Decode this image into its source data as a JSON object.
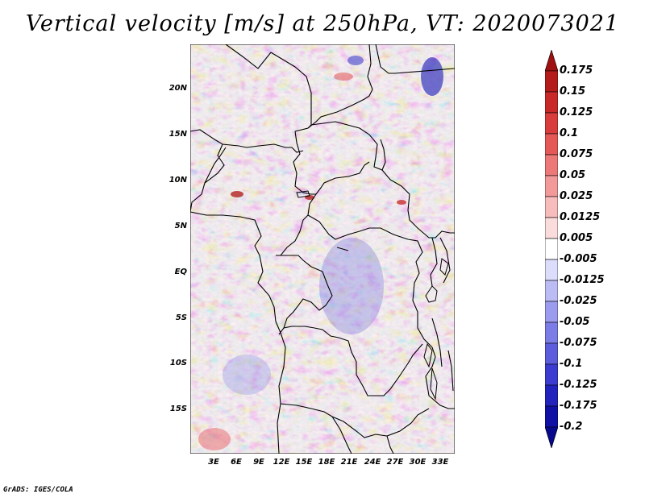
{
  "title": "Vertical velocity [m/s] at 250hPa, VT: 2020073021",
  "credit": "GrADS: IGES/COLA",
  "map": {
    "lat_labels": [
      "20N",
      "15N",
      "10N",
      "5N",
      "EQ",
      "5S",
      "10S",
      "15S"
    ],
    "lon_labels": [
      "3E",
      "6E",
      "9E",
      "12E",
      "15E",
      "18E",
      "21E",
      "24E",
      "27E",
      "30E",
      "33E"
    ],
    "field_name": "vertical velocity",
    "units": "m/s",
    "level": "250hPa"
  },
  "colorbar": {
    "levels": [
      "0.175",
      "0.15",
      "0.125",
      "0.1",
      "0.075",
      "0.05",
      "0.025",
      "0.0125",
      "0.005",
      "-0.005",
      "-0.0125",
      "-0.025",
      "-0.05",
      "-0.075",
      "-0.1",
      "-0.125",
      "-0.175",
      "-0.2"
    ],
    "colors": [
      "#a01010",
      "#b41c1c",
      "#c82828",
      "#d83c3c",
      "#e45858",
      "#ec7878",
      "#f29a9a",
      "#f7bcbc",
      "#fbdcdc",
      "#ffffff",
      "#dcdcfb",
      "#bcbcf5",
      "#9c9cee",
      "#7c7ce6",
      "#5c5cdc",
      "#3c3cd0",
      "#2222bc",
      "#1010a4",
      "#08088c"
    ]
  }
}
